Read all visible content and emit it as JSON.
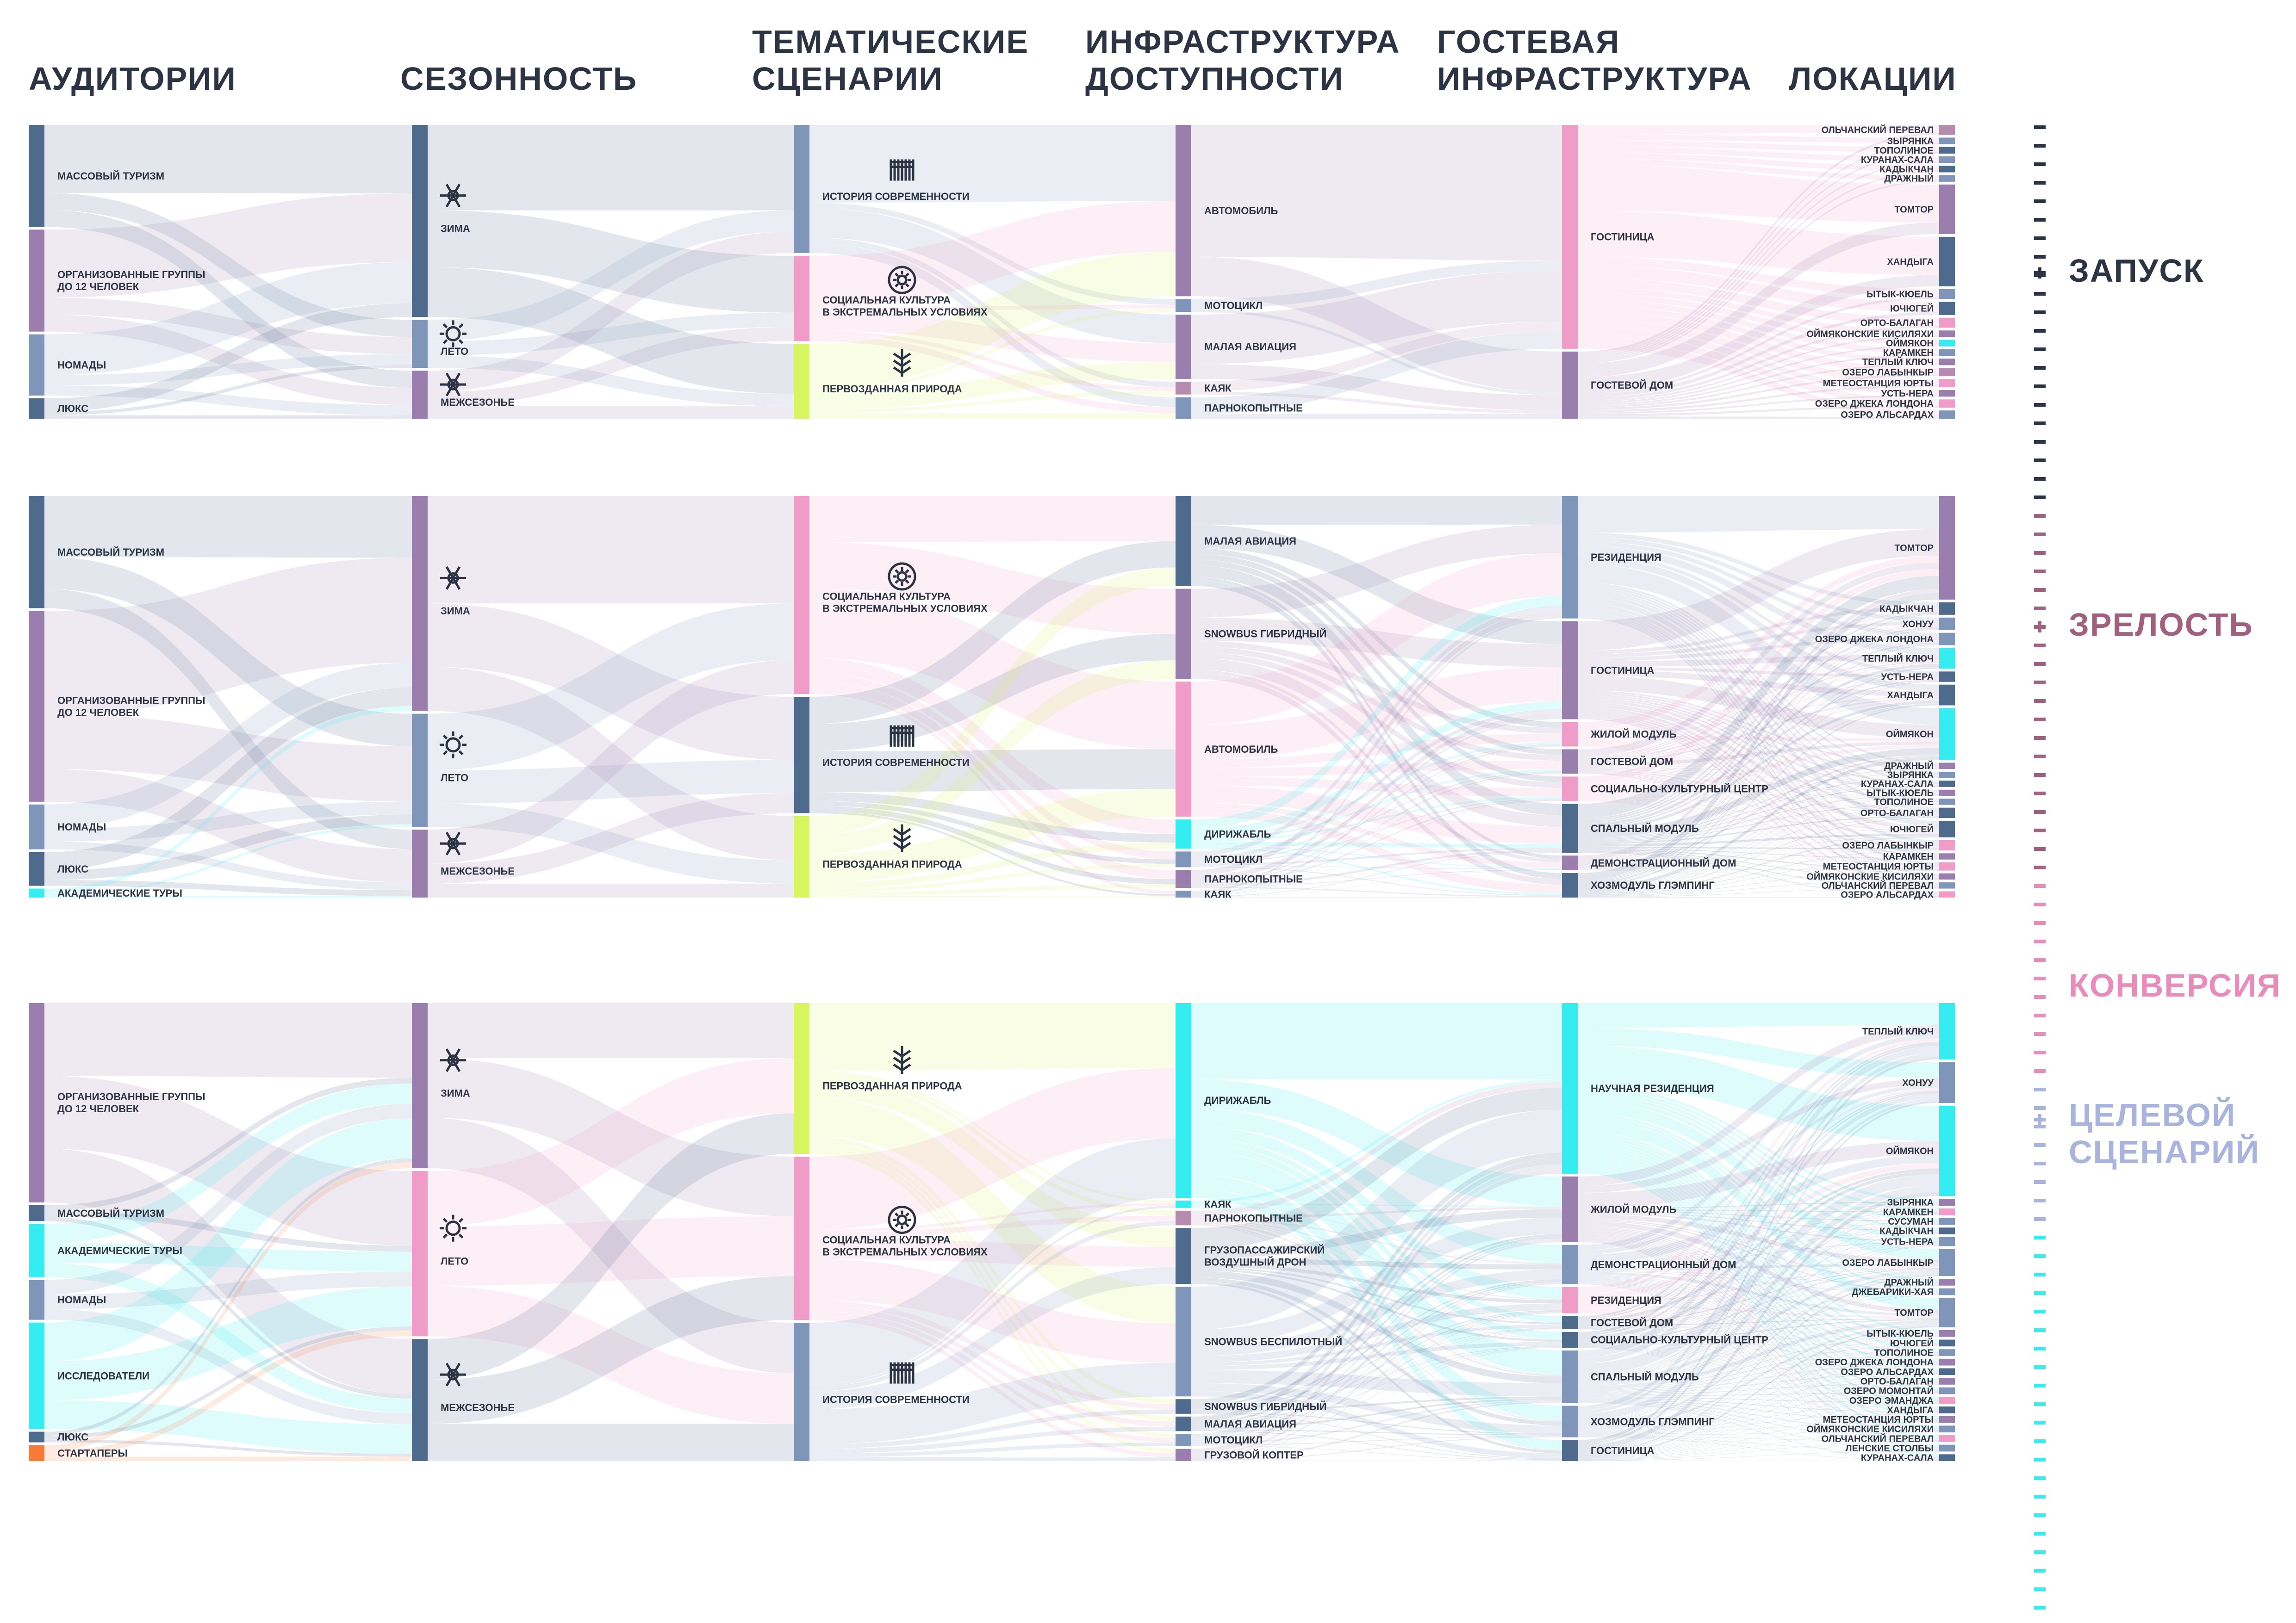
{
  "headers": {
    "audiences": "АУДИТОРИИ",
    "seasonality": "СЕЗОННОСТЬ",
    "scenarios": "ТЕМАТИЧЕСКИЕ\nСЦЕНАРИИ",
    "access": "ИНФРАСТРУКТУРА\nДОСТУПНОСТИ",
    "guest": "ГОСТЕВАЯ\nИНФРАСТРУКТУРА",
    "locations": "ЛОКАЦИИ"
  },
  "stages": [
    {
      "label": "ЗАПУСК",
      "color": "#2c3444"
    },
    {
      "label": "ЗРЕЛОСТЬ",
      "color": "#a0607e"
    },
    {
      "label": "КОНВЕРСИЯ",
      "color": "#e88cbc"
    },
    {
      "label": "ЦЕЛЕВОЙ\nСЦЕНАРИЙ",
      "color": "#a9b4dc"
    }
  ],
  "colors": {
    "slate": "#4e6a8c",
    "purple": "#9a7fae",
    "pink": "#f09cc8",
    "cyan": "#35ecf0",
    "lime": "#d8f560",
    "steel": "#7f95b9",
    "orange": "#f77a3a",
    "mauve": "#b58bb0"
  },
  "sections": [
    {
      "id": "launch",
      "columns": [
        [
          {
            "label": "МАССОВЫЙ ТУРИЗМ",
            "color": "slate",
            "weight": 5
          },
          {
            "label": "ОРГАНИЗОВАННЫЕ ГРУППЫ\nДО 12 ЧЕЛОВЕК",
            "color": "purple",
            "weight": 5
          },
          {
            "label": "НОМАДЫ",
            "color": "steel",
            "weight": 3
          },
          {
            "label": "ЛЮКС",
            "color": "slate",
            "weight": 1
          }
        ],
        [
          {
            "label": "ЗИМА",
            "color": "slate",
            "weight": 8,
            "icon": "snowflake"
          },
          {
            "label": "ЛЕТО",
            "color": "steel",
            "weight": 2,
            "icon": "sun"
          },
          {
            "label": "МЕЖСЕЗОНЬЕ",
            "color": "purple",
            "weight": 2,
            "icon": "snowflake-sun"
          }
        ],
        [
          {
            "label": "ИСТОРИЯ СОВРЕМЕННОСТИ",
            "color": "steel",
            "weight": 6,
            "icon": "fence"
          },
          {
            "label": "СОЦИАЛЬНАЯ КУЛЬТУРА\nВ ЭКСТРЕМАЛЬНЫХ УСЛОВИЯХ",
            "color": "pink",
            "weight": 4,
            "icon": "sun-circle"
          },
          {
            "label": "ПЕРВОЗДАННАЯ ПРИРОДА",
            "color": "lime",
            "weight": 3.5,
            "icon": "plant"
          }
        ],
        [
          {
            "label": "АВТОМОБИЛЬ",
            "color": "purple",
            "weight": 8
          },
          {
            "label": "МОТОЦИКЛ",
            "color": "steel",
            "weight": 0.6
          },
          {
            "label": "МАЛАЯ АВИАЦИЯ",
            "color": "purple",
            "weight": 3
          },
          {
            "label": "КАЯК",
            "color": "mauve",
            "weight": 0.6
          },
          {
            "label": "ПАРНОКОПЫТНЫЕ",
            "color": "steel",
            "weight": 1
          }
        ],
        [
          {
            "label": "ГОСТИНИЦА",
            "color": "pink",
            "weight": 5
          },
          {
            "label": "ГОСТЕВОЙ ДОМ",
            "color": "purple",
            "weight": 1.5
          }
        ],
        [
          {
            "label": "ОЛЬЧАНСКИЙ ПЕРЕВАЛ",
            "color": "mauve",
            "weight": 0.6
          },
          {
            "label": "ЗЫРЯНКА",
            "color": "steel",
            "weight": 0.4
          },
          {
            "label": "ТОПОЛИНОЕ",
            "color": "slate",
            "weight": 0.4
          },
          {
            "label": "КУРАНАХ-САЛА",
            "color": "steel",
            "weight": 0.4
          },
          {
            "label": "КАДЫКЧАН",
            "color": "slate",
            "weight": 0.4
          },
          {
            "label": "ДРАЖНЫЙ",
            "color": "steel",
            "weight": 0.4
          },
          {
            "label": "ТОМТОР",
            "color": "purple",
            "weight": 3
          },
          {
            "label": "ХАНДЫГА",
            "color": "slate",
            "weight": 3
          },
          {
            "label": "ЫТЫК-КЮЕЛЬ",
            "color": "steel",
            "weight": 0.6
          },
          {
            "label": "ЮЧЮГЕЙ",
            "color": "slate",
            "weight": 0.8
          },
          {
            "label": "ОРТО-БАЛАГАН",
            "color": "pink",
            "weight": 0.6
          },
          {
            "label": "ОЙМЯКОНСКИЕ КИСИЛЯХИ",
            "color": "purple",
            "weight": 0.4
          },
          {
            "label": "ОЙМЯКОН",
            "color": "cyan",
            "weight": 0.4
          },
          {
            "label": "КАРАМКЕН",
            "color": "steel",
            "weight": 0.4
          },
          {
            "label": "ТЕПЛЫЙ КЛЮЧ",
            "color": "purple",
            "weight": 0.4
          },
          {
            "label": "ОЗЕРО ЛАБЫНКЫР",
            "color": "mauve",
            "weight": 0.5
          },
          {
            "label": "МЕТЕОСТАНЦИЯ ЮРТЫ",
            "color": "pink",
            "weight": 0.5
          },
          {
            "label": "УСТЬ-НЕРА",
            "color": "purple",
            "weight": 0.4
          },
          {
            "label": "ОЗЕРО ДЖЕКА ЛОНДОНА",
            "color": "pink",
            "weight": 0.5
          },
          {
            "label": "ОЗЕРО АЛЬСАРДАХ",
            "color": "steel",
            "weight": 0.5
          }
        ]
      ]
    },
    {
      "id": "maturity",
      "columns": [
        [
          {
            "label": "МАССОВЫЙ ТУРИЗМ",
            "color": "slate",
            "weight": 5
          },
          {
            "label": "ОРГАНИЗОВАННЫЕ ГРУППЫ\nДО 12 ЧЕЛОВЕК",
            "color": "purple",
            "weight": 8.5
          },
          {
            "label": "НОМАДЫ",
            "color": "steel",
            "weight": 2
          },
          {
            "label": "ЛЮКС",
            "color": "slate",
            "weight": 1.5
          },
          {
            "label": "АКАДЕМИЧЕСКИЕ ТУРЫ",
            "color": "cyan",
            "weight": 0.4
          }
        ],
        [
          {
            "label": "ЗИМА",
            "color": "purple",
            "weight": 9.5,
            "icon": "snowflake"
          },
          {
            "label": "ЛЕТО",
            "color": "steel",
            "weight": 5,
            "icon": "sun"
          },
          {
            "label": "МЕЖСЕЗОНЬЕ",
            "color": "purple",
            "weight": 3,
            "icon": "snowflake-sun"
          }
        ],
        [
          {
            "label": "СОЦИАЛЬНАЯ КУЛЬТУРА\nВ ЭКСТРЕМАЛЬНЫХ УСЛОВИЯХ",
            "color": "pink",
            "weight": 8.5,
            "icon": "sun-circle"
          },
          {
            "label": "ИСТОРИЯ СОВРЕМЕННОСТИ",
            "color": "slate",
            "weight": 5,
            "icon": "fence"
          },
          {
            "label": "ПЕРВОЗДАННАЯ ПРИРОДА",
            "color": "lime",
            "weight": 3.5,
            "icon": "plant"
          }
        ],
        [
          {
            "label": "МАЛАЯ АВИАЦИЯ",
            "color": "slate",
            "weight": 4
          },
          {
            "label": "SNOWBUS ГИБРИДНЫЙ",
            "color": "purple",
            "weight": 4
          },
          {
            "label": "АВТОМОБИЛЬ",
            "color": "pink",
            "weight": 6
          },
          {
            "label": "ДИРИЖАБЛЬ",
            "color": "cyan",
            "weight": 1.3
          },
          {
            "label": "МОТОЦИКЛ",
            "color": "steel",
            "weight": 0.7
          },
          {
            "label": "ПАРНОКОПЫТНЫЕ",
            "color": "purple",
            "weight": 0.8
          },
          {
            "label": "КАЯК",
            "color": "steel",
            "weight": 0.3
          }
        ],
        [
          {
            "label": "РЕЗИДЕНЦИЯ",
            "color": "steel",
            "weight": 5
          },
          {
            "label": "ГОСТИНИЦА",
            "color": "purple",
            "weight": 4
          },
          {
            "label": "ЖИЛОЙ МОДУЛЬ",
            "color": "pink",
            "weight": 1
          },
          {
            "label": "ГОСТЕВОЙ ДОМ",
            "color": "purple",
            "weight": 1
          },
          {
            "label": "СОЦИАЛЬНО-КУЛЬТУРНЫЙ ЦЕНТР",
            "color": "pink",
            "weight": 1
          },
          {
            "label": "СПАЛЬНЫЙ МОДУЛЬ",
            "color": "slate",
            "weight": 2
          },
          {
            "label": "ДЕМОНСТРАЦИОННЫЙ ДОМ",
            "color": "purple",
            "weight": 0.6
          },
          {
            "label": "ХОЗМОДУЛЬ ГЛЭМПИНГ",
            "color": "slate",
            "weight": 1
          }
        ],
        [
          {
            "label": "ТОМТОР",
            "color": "purple",
            "weight": 5
          },
          {
            "label": "КАДЫКЧАН",
            "color": "slate",
            "weight": 0.6
          },
          {
            "label": "ХОНУУ",
            "color": "steel",
            "weight": 0.6
          },
          {
            "label": "ОЗЕРО ДЖЕКА ЛОНДОНА",
            "color": "steel",
            "weight": 0.6
          },
          {
            "label": "ТЕПЛЫЙ КЛЮЧ",
            "color": "cyan",
            "weight": 1
          },
          {
            "label": "УСТЬ-НЕРА",
            "color": "slate",
            "weight": 0.5
          },
          {
            "label": "ХАНДЫГА",
            "color": "slate",
            "weight": 1
          },
          {
            "label": "ОЙМЯКОН",
            "color": "cyan",
            "weight": 2.5
          },
          {
            "label": "ДРАЖНЫЙ",
            "color": "purple",
            "weight": 0.3
          },
          {
            "label": "ЗЫРЯНКА",
            "color": "steel",
            "weight": 0.3
          },
          {
            "label": "КУРАНАХ-САЛА",
            "color": "slate",
            "weight": 0.3
          },
          {
            "label": "ЫТЫК-КЮЕЛЬ",
            "color": "purple",
            "weight": 0.3
          },
          {
            "label": "ТОПОЛИНОЕ",
            "color": "steel",
            "weight": 0.3
          },
          {
            "label": "ОРТО-БАЛАГАН",
            "color": "slate",
            "weight": 0.5
          },
          {
            "label": "ЮЧЮГЕЙ",
            "color": "slate",
            "weight": 0.8
          },
          {
            "label": "ОЗЕРО ЛАБЫНКЫР",
            "color": "pink",
            "weight": 0.5
          },
          {
            "label": "КАРАМКЕН",
            "color": "purple",
            "weight": 0.3
          },
          {
            "label": "МЕТЕОСТАНЦИЯ ЮРТЫ",
            "color": "pink",
            "weight": 0.4
          },
          {
            "label": "ОЙМЯКОНСКИЕ КИСИЛЯХИ",
            "color": "purple",
            "weight": 0.3
          },
          {
            "label": "ОЛЬЧАНСКИЙ ПЕРЕВАЛ",
            "color": "steel",
            "weight": 0.3
          },
          {
            "label": "ОЗЕРО АЛЬСАРДАХ",
            "color": "pink",
            "weight": 0.3
          }
        ]
      ]
    },
    {
      "id": "target",
      "columns": [
        [
          {
            "label": "ОРГАНИЗОВАННЫЕ ГРУППЫ\nДО 12 ЧЕЛОВЕК",
            "color": "purple",
            "weight": 7.5
          },
          {
            "label": "МАССОВЫЙ ТУРИЗМ",
            "color": "slate",
            "weight": 0.6
          },
          {
            "label": "АКАДЕМИЧЕСКИЕ ТУРЫ",
            "color": "cyan",
            "weight": 2
          },
          {
            "label": "НОМАДЫ",
            "color": "steel",
            "weight": 1.5
          },
          {
            "label": "ИССЛЕДОВАТЕЛИ",
            "color": "cyan",
            "weight": 4
          },
          {
            "label": "ЛЮКС",
            "color": "slate",
            "weight": 0.4
          },
          {
            "label": "СТАРТАПЕРЫ",
            "color": "orange",
            "weight": 0.6
          }
        ],
        [
          {
            "label": "ЗИМА",
            "color": "purple",
            "weight": 6.5,
            "icon": "snowflake"
          },
          {
            "label": "ЛЕТО",
            "color": "pink",
            "weight": 6.5,
            "icon": "sun"
          },
          {
            "label": "МЕЖСЕЗОНЬЕ",
            "color": "slate",
            "weight": 4.8,
            "icon": "snowflake-sun"
          }
        ],
        [
          {
            "label": "ПЕРВОЗДАННАЯ ПРИРОДА",
            "color": "lime",
            "weight": 6,
            "icon": "plant"
          },
          {
            "label": "СОЦИАЛЬНАЯ КУЛЬТУРА\nВ ЭКСТРЕМАЛЬНЫХ УСЛОВИЯХ",
            "color": "pink",
            "weight": 6.5,
            "icon": "sun-circle"
          },
          {
            "label": "ИСТОРИЯ СОВРЕМЕННОСТИ",
            "color": "steel",
            "weight": 5.5,
            "icon": "fence"
          }
        ],
        [
          {
            "label": "ДИРИЖАБЛЬ",
            "color": "cyan",
            "weight": 8
          },
          {
            "label": "КАЯК",
            "color": "cyan",
            "weight": 0.3
          },
          {
            "label": "ПАРНОКОПЫТНЫЕ",
            "color": "mauve",
            "weight": 0.6
          },
          {
            "label": "ГРУЗОПАССАЖИРСКИЙ\nВОЗДУШНЫЙ ДРОН",
            "color": "slate",
            "weight": 2.3
          },
          {
            "label": "SNOWBUS БЕСПИЛОТНЫЙ",
            "color": "steel",
            "weight": 4.5
          },
          {
            "label": "SNOWBUS ГИБРИДНЫЙ",
            "color": "slate",
            "weight": 0.6
          },
          {
            "label": "МАЛАЯ АВИАЦИЯ",
            "color": "slate",
            "weight": 0.6
          },
          {
            "label": "МОТОЦИКЛ",
            "color": "steel",
            "weight": 0.5
          },
          {
            "label": "ГРУЗОВОЙ КОПТЕР",
            "color": "purple",
            "weight": 0.5
          }
        ],
        [
          {
            "label": "НАУЧНАЯ РЕЗИДЕНЦИЯ",
            "color": "cyan",
            "weight": 6.5
          },
          {
            "label": "ЖИЛОЙ МОДУЛЬ",
            "color": "purple",
            "weight": 2.5
          },
          {
            "label": "ДЕМОНСТРАЦИОННЫЙ ДОМ",
            "color": "steel",
            "weight": 1.5
          },
          {
            "label": "РЕЗИДЕНЦИЯ",
            "color": "pink",
            "weight": 1
          },
          {
            "label": "ГОСТЕВОЙ ДОМ",
            "color": "slate",
            "weight": 0.5
          },
          {
            "label": "СОЦИАЛЬНО-КУЛЬТУРНЫЙ ЦЕНТР",
            "color": "slate",
            "weight": 0.6
          },
          {
            "label": "СПАЛЬНЫЙ МОДУЛЬ",
            "color": "steel",
            "weight": 2
          },
          {
            "label": "ХОЗМОДУЛЬ ГЛЭМПИНГ",
            "color": "steel",
            "weight": 1.2
          },
          {
            "label": "ГОСТИНИЦА",
            "color": "slate",
            "weight": 0.8
          }
        ],
        [
          {
            "label": "ТЕПЛЫЙ КЛЮЧ",
            "color": "cyan",
            "weight": 2.5
          },
          {
            "label": "ХОНУУ",
            "color": "steel",
            "weight": 1.8
          },
          {
            "label": "ОЙМЯКОН",
            "color": "cyan",
            "weight": 4
          },
          {
            "label": "ЗЫРЯНКА",
            "color": "purple",
            "weight": 0.3
          },
          {
            "label": "КАРАМКЕН",
            "color": "pink",
            "weight": 0.3
          },
          {
            "label": "СУСУМАН",
            "color": "steel",
            "weight": 0.3
          },
          {
            "label": "КАДЫКЧАН",
            "color": "slate",
            "weight": 0.3
          },
          {
            "label": "УСТЬ-НЕРА",
            "color": "steel",
            "weight": 0.4
          },
          {
            "label": "ОЗЕРО ЛАБЫНКЫР",
            "color": "steel",
            "weight": 1.2
          },
          {
            "label": "ДРАЖНЫЙ",
            "color": "purple",
            "weight": 0.3
          },
          {
            "label": "ДЖЕБАРИКИ-ХАЯ",
            "color": "steel",
            "weight": 0.3
          },
          {
            "label": "ТОМТОР",
            "color": "steel",
            "weight": 1.3
          },
          {
            "label": "ЫТЫК-КЮЕЛЬ",
            "color": "purple",
            "weight": 0.3
          },
          {
            "label": "ЮЧЮГЕЙ",
            "color": "slate",
            "weight": 0.3
          },
          {
            "label": "ТОПОЛИНОЕ",
            "color": "steel",
            "weight": 0.3
          },
          {
            "label": "ОЗЕРО ДЖЕКА ЛОНДОНА",
            "color": "purple",
            "weight": 0.3
          },
          {
            "label": "ОЗЕРО АЛЬСАРДАХ",
            "color": "slate",
            "weight": 0.3
          },
          {
            "label": "ОРТО-БАЛАГАН",
            "color": "purple",
            "weight": 0.3
          },
          {
            "label": "ОЗЕРО МОМОНТАЙ",
            "color": "steel",
            "weight": 0.3
          },
          {
            "label": "ОЗЕРО ЭМАНДЖА",
            "color": "pink",
            "weight": 0.3
          },
          {
            "label": "ХАНДЫГА",
            "color": "slate",
            "weight": 0.3
          },
          {
            "label": "МЕТЕОСТАНЦИЯ ЮРТЫ",
            "color": "purple",
            "weight": 0.3
          },
          {
            "label": "ОЙМЯКОНСКИЕ КИСИЛЯХИ",
            "color": "steel",
            "weight": 0.3
          },
          {
            "label": "ОЛЬЧАНСКИЙ ПЕРЕВАЛ",
            "color": "pink",
            "weight": 0.3
          },
          {
            "label": "ЛЕНСКИЕ СТОЛБЫ",
            "color": "steel",
            "weight": 0.3
          },
          {
            "label": "КУРАНАХ-САЛА",
            "color": "slate",
            "weight": 0.3
          }
        ]
      ]
    }
  ]
}
